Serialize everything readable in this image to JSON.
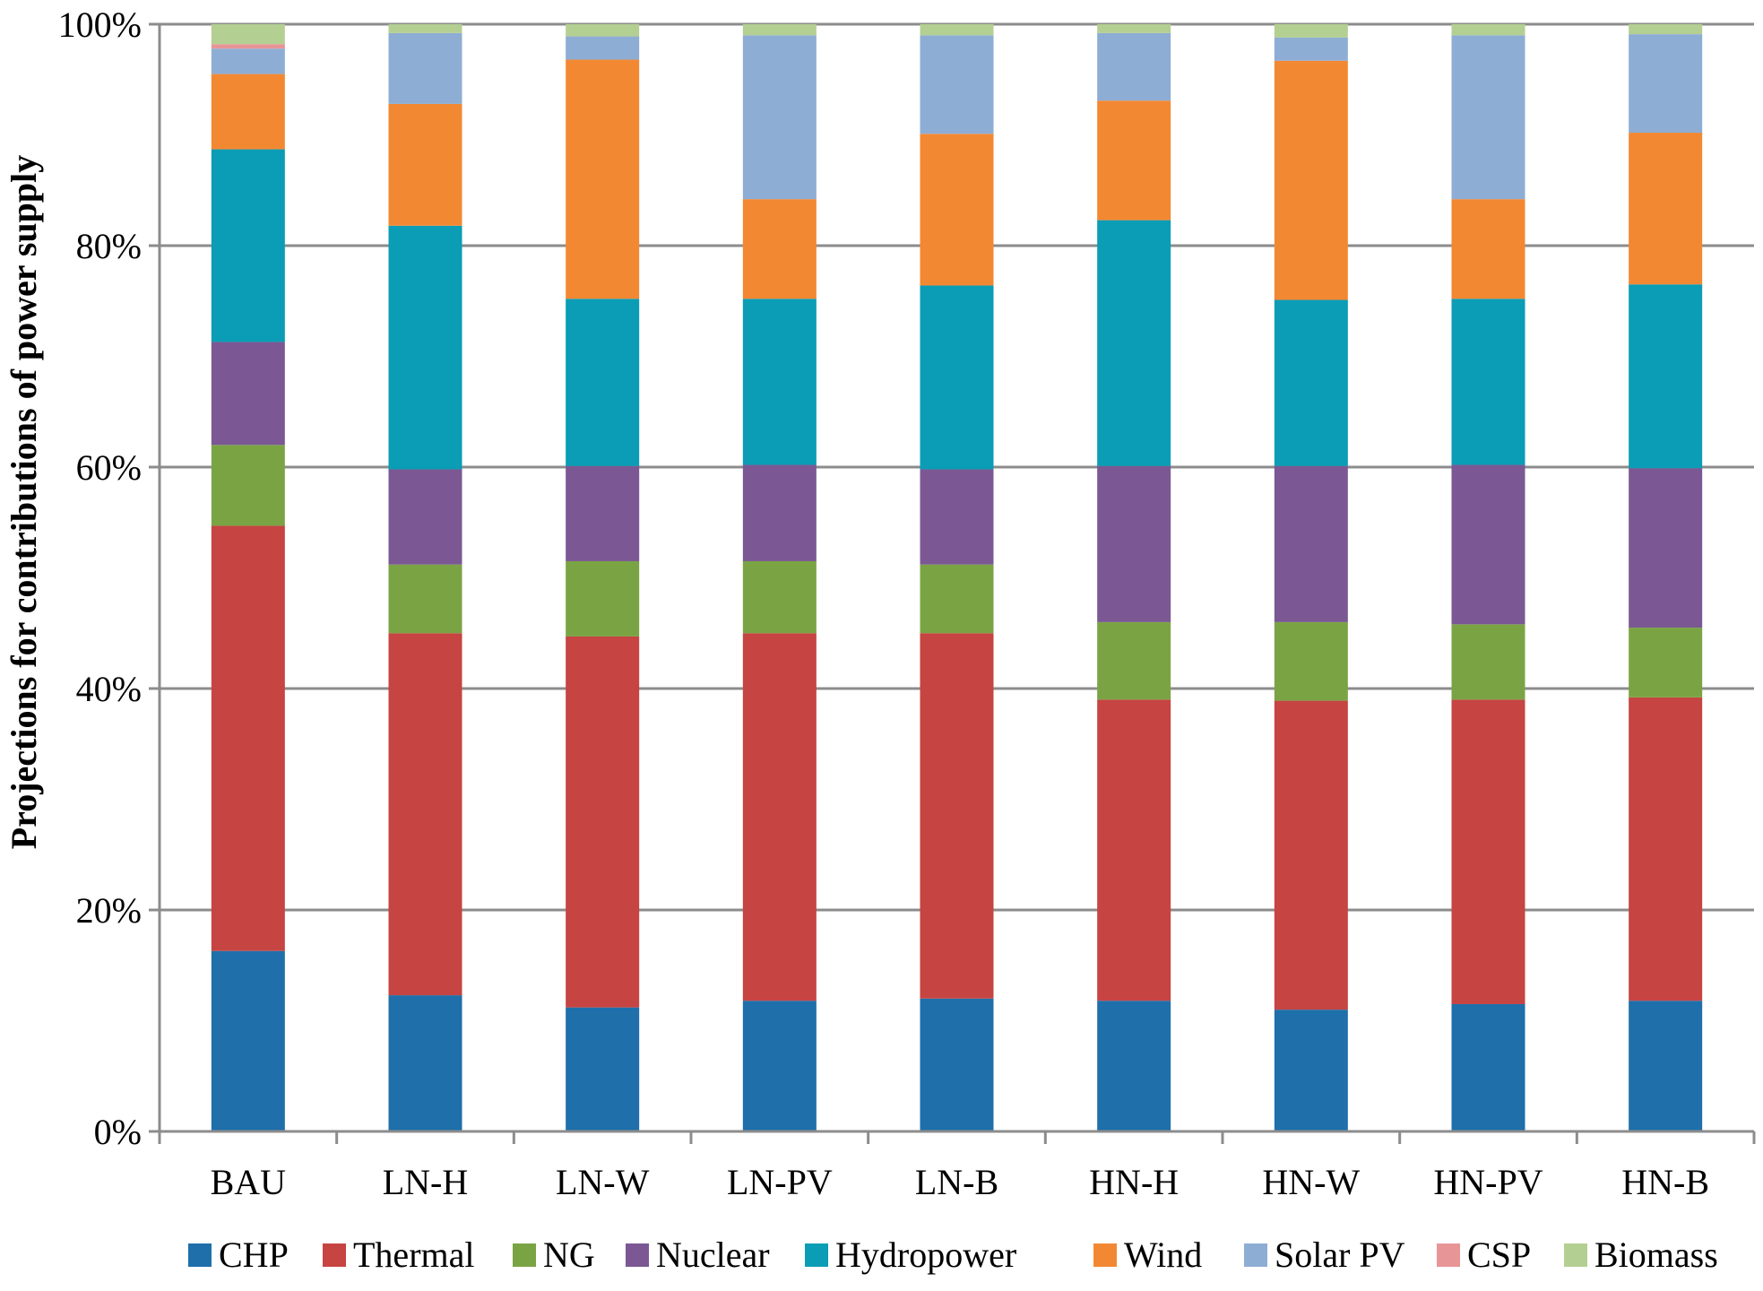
{
  "chart_data": {
    "type": "bar",
    "stacked": true,
    "normalized": true,
    "title": "",
    "xlabel": "",
    "ylabel": "Projections  for  contributions of power supply",
    "ylim": [
      0,
      100
    ],
    "yticks": [
      0,
      20,
      40,
      60,
      80,
      100
    ],
    "ytick_format": "{v}%",
    "grid": true,
    "legend_position": "bottom",
    "categories": [
      "BAU",
      "LN-H",
      "LN-W",
      "LN-PV",
      "LN-B",
      "HN-H",
      "HN-W",
      "HN-PV",
      "HN-B"
    ],
    "series": [
      {
        "name": "CHP",
        "color": "#1F6FAA",
        "values": [
          16.3,
          12.3,
          11.2,
          11.8,
          12.0,
          11.8,
          11.0,
          11.5,
          11.8
        ]
      },
      {
        "name": "Thermal",
        "color": "#C64442",
        "values": [
          38.4,
          32.7,
          33.5,
          33.2,
          33.0,
          27.2,
          27.9,
          27.5,
          27.4
        ]
      },
      {
        "name": "NG",
        "color": "#7AA444",
        "values": [
          7.3,
          6.2,
          6.8,
          6.5,
          6.2,
          7.0,
          7.1,
          6.8,
          6.3
        ]
      },
      {
        "name": "Nuclear",
        "color": "#7B5894",
        "values": [
          9.3,
          8.6,
          8.6,
          8.7,
          8.6,
          14.1,
          14.1,
          14.4,
          14.4
        ]
      },
      {
        "name": "Hydropower",
        "color": "#0A9DB5",
        "values": [
          17.4,
          22.0,
          15.1,
          15.0,
          16.6,
          22.2,
          15.0,
          15.0,
          16.6
        ]
      },
      {
        "name": "Wind",
        "color": "#F38833",
        "values": [
          6.8,
          11.0,
          21.6,
          9.0,
          13.7,
          10.8,
          21.6,
          9.0,
          13.7
        ]
      },
      {
        "name": "Solar PV",
        "color": "#8EADD4",
        "values": [
          2.3,
          6.4,
          2.1,
          14.8,
          8.9,
          6.1,
          2.1,
          14.8,
          8.9
        ]
      },
      {
        "name": "CSP",
        "color": "#E89597",
        "values": [
          0.4,
          0,
          0,
          0,
          0,
          0,
          0,
          0,
          0
        ]
      },
      {
        "name": "Biomass",
        "color": "#B4CF92",
        "values": [
          1.8,
          0.8,
          1.1,
          1.0,
          1.0,
          0.8,
          1.2,
          1.0,
          0.9
        ]
      }
    ]
  }
}
